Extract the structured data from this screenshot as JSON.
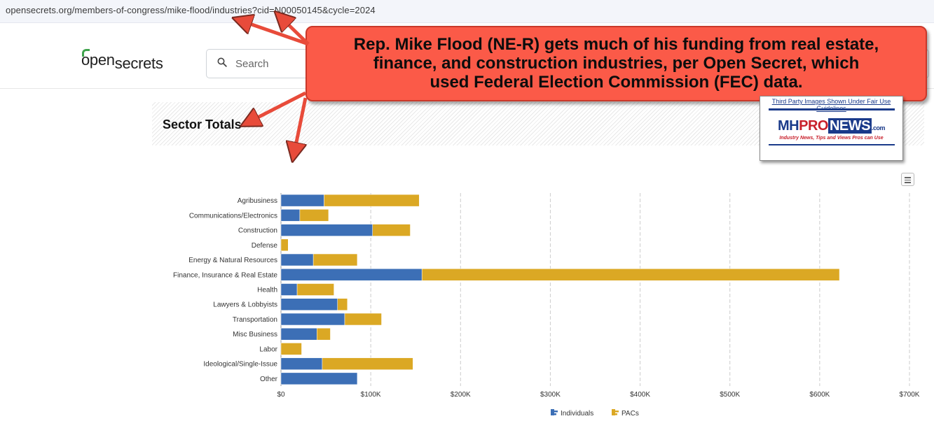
{
  "browser": {
    "url": "opensecrets.org/members-of-congress/mike-flood/industries?cid=N00050145&cycle=2024"
  },
  "header": {
    "logo_open": "open",
    "logo_secrets": "secrets",
    "search_placeholder": "Search"
  },
  "section": {
    "title": "Sector Totals"
  },
  "callout": {
    "line1": "Rep. Mike Flood (NE-R) gets much of his funding from real estate,",
    "line2": "finance, and construction industries, per Open Secret, which",
    "line3": "used Federal Election Commission (FEC) data."
  },
  "watermark": {
    "disclaimer": "Third Party Images Shown Under Fair Use Guidelines",
    "mh": "MH",
    "pro": "PRO",
    "news": "NEWS",
    "com": ".com",
    "tagline": "Industry News, Tips and Views Pros can Use"
  },
  "colors": {
    "individuals": "#3c6fb6",
    "pacs": "#dba824",
    "callout_bg": "#fb5a48",
    "grid": "#cccccc"
  },
  "icons": [
    "search-icon",
    "chart-menu-icon",
    "arrow-icon"
  ],
  "chart_data": {
    "type": "bar",
    "orientation": "horizontal",
    "stacked": true,
    "categories": [
      "Agribusiness",
      "Communications/Electronics",
      "Construction",
      "Defense",
      "Energy & Natural Resources",
      "Finance, Insurance & Real Estate",
      "Health",
      "Lawyers & Lobbyists",
      "Transportation",
      "Misc Business",
      "Labor",
      "Ideological/Single-Issue",
      "Other"
    ],
    "series": [
      {
        "name": "Individuals",
        "values": [
          48000,
          21000,
          102000,
          0,
          36000,
          157000,
          18000,
          63000,
          71000,
          40000,
          0,
          46000,
          85000
        ]
      },
      {
        "name": "PACs",
        "values": [
          106000,
          32000,
          42000,
          8000,
          49000,
          465000,
          41000,
          11000,
          41000,
          15000,
          23000,
          101000,
          0
        ]
      }
    ],
    "xlim": [
      0,
      700000
    ],
    "xticks": [
      "$0",
      "$100K",
      "$200K",
      "$300K",
      "$400K",
      "$500K",
      "$600K",
      "$700K"
    ],
    "legend": "bottom-center",
    "grid": true
  }
}
